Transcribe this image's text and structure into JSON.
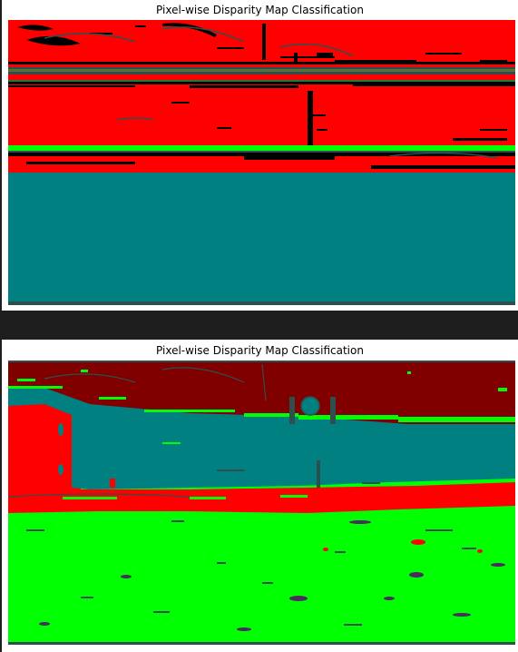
{
  "figures": [
    {
      "title": "Pixel-wise Disparity Map Classification",
      "class_colors": {
        "dark-red": "#800000",
        "red": "#ff0000",
        "green": "#00ff00",
        "teal": "#008080",
        "black": "#000000",
        "slate": "#2f4f4f",
        "purple": "#4b2c5e"
      }
    },
    {
      "title": "Pixel-wise Disparity Map Classification",
      "class_colors": {
        "dark-red": "#800000",
        "red": "#ff0000",
        "green": "#00ff00",
        "teal": "#008080",
        "black": "#000000",
        "slate": "#2f4f4f",
        "purple": "#4b2c5e"
      }
    }
  ]
}
